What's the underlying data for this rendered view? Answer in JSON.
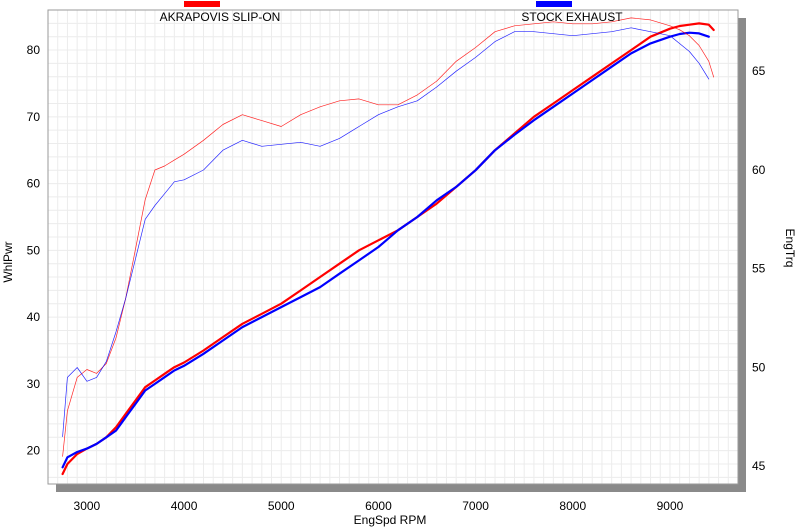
{
  "chart_data": {
    "type": "line",
    "xlabel": "EngSpd  RPM",
    "ylabel": "WhlPwr",
    "y2label": "EngTrq",
    "xlim": [
      2600,
      9700
    ],
    "ylim": [
      15,
      86
    ],
    "y2lim": [
      44.1,
      68.1
    ],
    "x_ticks": [
      3000,
      4000,
      5000,
      6000,
      7000,
      8000,
      9000
    ],
    "y_ticks": [
      20,
      30,
      40,
      50,
      60,
      70,
      80
    ],
    "y2_ticks": [
      45,
      50,
      55,
      60,
      65
    ],
    "grid": true,
    "legend": {
      "position": "top"
    },
    "series": [
      {
        "name": "AKRAPOVIS SLIP-ON",
        "color": "#ff0000",
        "axis": "left",
        "x": [
          2750,
          2800,
          2900,
          3000,
          3100,
          3200,
          3300,
          3400,
          3500,
          3600,
          3700,
          3800,
          3900,
          4000,
          4200,
          4400,
          4600,
          4800,
          5000,
          5200,
          5400,
          5600,
          5800,
          6000,
          6200,
          6400,
          6600,
          6800,
          7000,
          7200,
          7400,
          7600,
          7800,
          8000,
          8200,
          8400,
          8600,
          8800,
          9000,
          9100,
          9200,
          9300,
          9400,
          9450
        ],
        "y": [
          16.5,
          18.0,
          19.5,
          20.3,
          21.0,
          22.0,
          23.5,
          25.5,
          27.5,
          29.5,
          30.5,
          31.5,
          32.5,
          33.2,
          35.0,
          37.0,
          39.0,
          40.5,
          42.0,
          44.0,
          46.0,
          48.0,
          50.0,
          51.5,
          53.0,
          55.0,
          57.0,
          59.5,
          62.0,
          65.0,
          67.5,
          70.0,
          72.0,
          74.0,
          76.0,
          78.0,
          80.0,
          82.0,
          83.2,
          83.6,
          83.8,
          84.0,
          83.8,
          83.0
        ]
      },
      {
        "name": "STOCK EXHAUST",
        "color": "#0000ff",
        "axis": "left",
        "x": [
          2750,
          2800,
          2900,
          3000,
          3100,
          3200,
          3300,
          3400,
          3500,
          3600,
          3700,
          3800,
          3900,
          4000,
          4200,
          4400,
          4600,
          4800,
          5000,
          5200,
          5400,
          5600,
          5800,
          6000,
          6200,
          6400,
          6600,
          6800,
          7000,
          7200,
          7400,
          7600,
          7800,
          8000,
          8200,
          8400,
          8600,
          8800,
          9000,
          9100,
          9200,
          9300,
          9400
        ],
        "y": [
          17.5,
          19.0,
          19.8,
          20.3,
          21.0,
          22.0,
          23.0,
          25.0,
          27.0,
          29.0,
          30.0,
          31.0,
          32.0,
          32.7,
          34.5,
          36.5,
          38.5,
          40.0,
          41.5,
          43.0,
          44.5,
          46.5,
          48.5,
          50.5,
          53.0,
          55.0,
          57.5,
          59.5,
          62.0,
          65.0,
          67.3,
          69.5,
          71.5,
          73.5,
          75.5,
          77.5,
          79.5,
          81.0,
          82.0,
          82.4,
          82.6,
          82.5,
          82.0
        ]
      },
      {
        "name": "AKRAPOVIS SLIP-ON",
        "color": "#ff0000",
        "axis": "right",
        "x": [
          2750,
          2800,
          2900,
          3000,
          3100,
          3200,
          3300,
          3400,
          3500,
          3600,
          3700,
          3800,
          3900,
          4000,
          4200,
          4400,
          4600,
          4800,
          5000,
          5200,
          5400,
          5600,
          5800,
          6000,
          6200,
          6400,
          6600,
          6800,
          7000,
          7200,
          7400,
          7600,
          7800,
          8000,
          8200,
          8400,
          8600,
          8800,
          9000,
          9100,
          9200,
          9300,
          9400,
          9450
        ],
        "y": [
          45.5,
          47.8,
          49.5,
          49.9,
          49.7,
          50.2,
          51.5,
          53.5,
          56.0,
          58.5,
          60.0,
          60.2,
          60.5,
          60.8,
          61.5,
          62.3,
          62.8,
          62.5,
          62.2,
          62.8,
          63.2,
          63.5,
          63.6,
          63.3,
          63.3,
          63.8,
          64.5,
          65.5,
          66.2,
          67.0,
          67.3,
          67.4,
          67.5,
          67.4,
          67.4,
          67.5,
          67.7,
          67.6,
          67.3,
          67.1,
          66.8,
          66.3,
          65.5,
          64.7
        ]
      },
      {
        "name": "STOCK EXHAUST",
        "color": "#0000ff",
        "axis": "right",
        "x": [
          2750,
          2800,
          2900,
          3000,
          3100,
          3200,
          3300,
          3400,
          3500,
          3600,
          3700,
          3800,
          3900,
          4000,
          4200,
          4400,
          4600,
          4800,
          5000,
          5200,
          5400,
          5600,
          5800,
          6000,
          6200,
          6400,
          6600,
          6800,
          7000,
          7200,
          7400,
          7600,
          7800,
          8000,
          8200,
          8400,
          8600,
          8800,
          9000,
          9100,
          9200,
          9300,
          9400
        ],
        "y": [
          46.5,
          49.5,
          50.0,
          49.3,
          49.5,
          50.3,
          51.8,
          53.5,
          55.5,
          57.5,
          58.2,
          58.8,
          59.4,
          59.5,
          60.0,
          61.0,
          61.5,
          61.2,
          61.3,
          61.4,
          61.2,
          61.6,
          62.2,
          62.8,
          63.2,
          63.5,
          64.2,
          65.0,
          65.7,
          66.5,
          67.0,
          67.0,
          66.9,
          66.8,
          66.9,
          67.0,
          67.2,
          67.0,
          66.8,
          66.4,
          66.0,
          65.4,
          64.6
        ]
      }
    ]
  }
}
